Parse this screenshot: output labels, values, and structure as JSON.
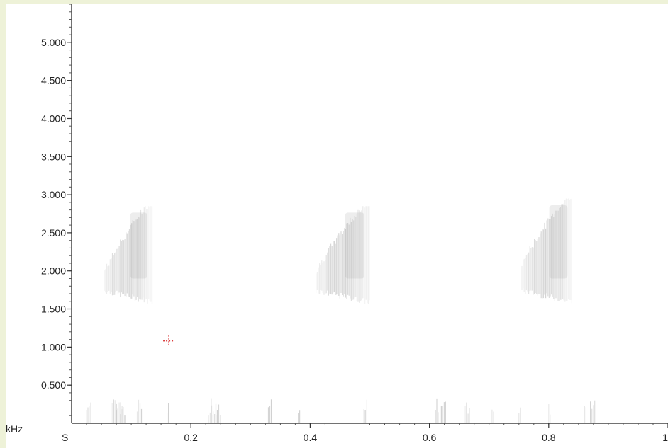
{
  "chart_data": {
    "type": "heatmap",
    "subtype": "spectrogram",
    "title": "",
    "y_unit_label": "kHz",
    "x_unit_label": "S",
    "xlim": [
      0,
      1
    ],
    "ylim": [
      0,
      5.5
    ],
    "x_ticks": [
      {
        "value": 0.2,
        "label": "0.2"
      },
      {
        "value": 0.4,
        "label": "0.4"
      },
      {
        "value": 0.6,
        "label": "0.6"
      },
      {
        "value": 0.8,
        "label": "0.8"
      },
      {
        "value": 1.0,
        "label": "1"
      }
    ],
    "y_ticks": [
      {
        "value": 0.5,
        "label": "0.500"
      },
      {
        "value": 1.0,
        "label": "1.000"
      },
      {
        "value": 1.5,
        "label": "1.500"
      },
      {
        "value": 2.0,
        "label": "2.000"
      },
      {
        "value": 2.5,
        "label": "2.500"
      },
      {
        "value": 3.0,
        "label": "3.000"
      },
      {
        "value": 3.5,
        "label": "3.500"
      },
      {
        "value": 4.0,
        "label": "4.000"
      },
      {
        "value": 4.5,
        "label": "4.500"
      },
      {
        "value": 5.0,
        "label": "5.000"
      }
    ],
    "energy_bursts": [
      {
        "name": "burst-1",
        "t_start": 0.055,
        "t_end": 0.135,
        "f_low": 1.55,
        "f_high": 2.85
      },
      {
        "name": "burst-2",
        "t_start": 0.41,
        "t_end": 0.5,
        "f_low": 1.55,
        "f_high": 2.85
      },
      {
        "name": "burst-3",
        "t_start": 0.755,
        "t_end": 0.84,
        "f_low": 1.55,
        "f_high": 2.95
      }
    ],
    "low_frequency_noise": [
      0.025,
      0.068,
      0.075,
      0.082,
      0.11,
      0.16,
      0.23,
      0.235,
      0.242,
      0.33,
      0.38,
      0.49,
      0.61,
      0.62,
      0.66,
      0.705,
      0.75,
      0.8,
      0.86,
      0.87
    ],
    "cursor_marker": {
      "t": 0.163,
      "f": 1.08,
      "color": "#d62020"
    }
  }
}
